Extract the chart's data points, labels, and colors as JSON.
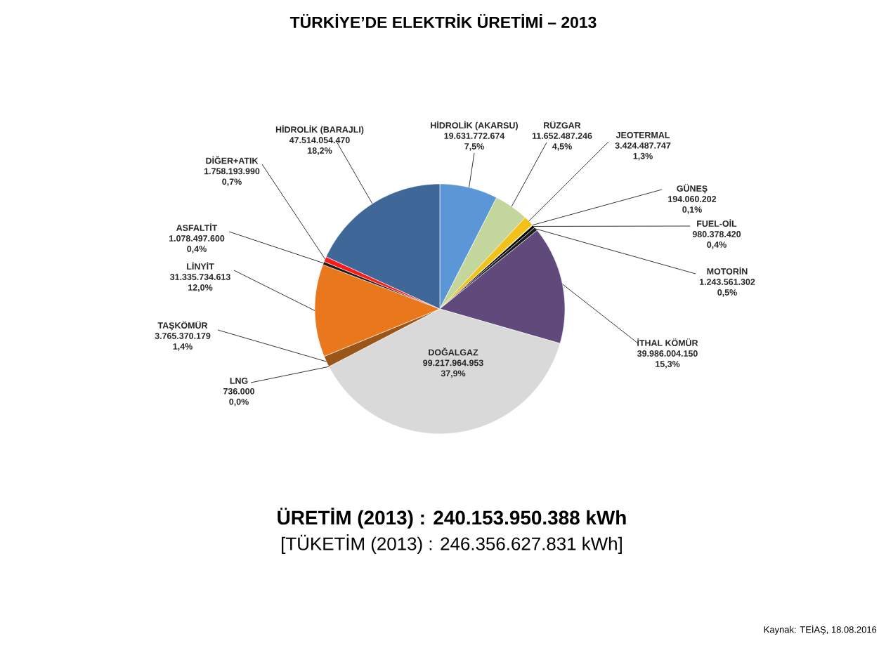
{
  "chart_data": {
    "type": "pie",
    "title": "TÜRKİYE’DE ELEKTRİK ÜRETİMİ – 2013",
    "categories": [
      "HİDROLİK (AKARSU)",
      "RÜZGAR",
      "JEOTERMAL",
      "GÜNEŞ",
      "FUEL-OİL",
      "MOTORİN",
      "İTHAL KÖMÜR",
      "DOĞALGAZ",
      "LNG",
      "TAŞKÖMÜR",
      "LİNYİT",
      "ASFALTİT",
      "DİĞER+ATIK",
      "HİDROLİK (BARAJLI)"
    ],
    "values": [
      19631772674,
      11652487246,
      3424487747,
      194060202,
      980378420,
      1243561302,
      39986004150,
      99217964953,
      736000,
      3765370179,
      31335734613,
      1078497600,
      1758193990,
      47514054470
    ],
    "value_labels": [
      "19.631.772.674 7,5%",
      "11.652.487.246 4,5%",
      "3.424.487.747 1,3%",
      "194.060.202 0,1%",
      "980.378.420 0,4%",
      "1.243.561.302 0,5%",
      "39.986.004.150 15,3%",
      "99.217.964.953 37,9%",
      "736.000 0,0%",
      "3.765.370.179 1,4%",
      "31.335.734.613 12,0%",
      "1.078.497.600 0,4%",
      "1.758.193.990 0,7%",
      "47.514.054.470 18,2%"
    ],
    "colors": [
      "#5b96d6",
      "#c3d69b",
      "#f2c21a",
      "#ffff33",
      "#000000",
      "#1e1e1e",
      "#5f4a7b",
      "#d9d9d9",
      "#7f7f7f",
      "#9a5619",
      "#e8781b",
      "#1a1a1a",
      "#ff1a1a",
      "#3f6797"
    ],
    "annotations": [
      "ÜRETİM (2013)    : 240.153.950.388  kWh",
      "[TÜKETİM (2013) : 246.356.627.831 kWh]",
      "Kaynak: TEİAŞ, 18.08.2016"
    ]
  }
}
